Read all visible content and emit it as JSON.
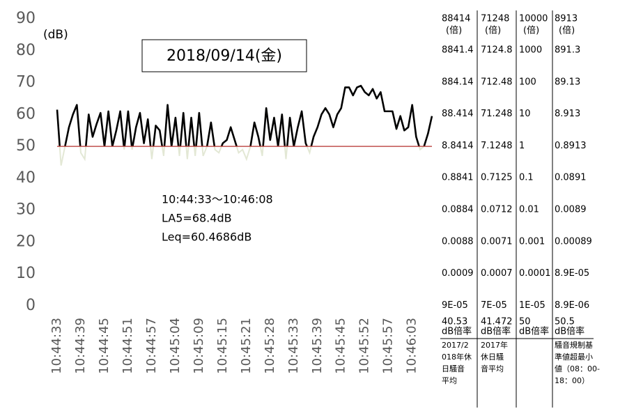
{
  "chart_data": {
    "type": "line",
    "y_unit_label": "(dB)",
    "date_label": "2018/09/14(金)",
    "annotations": [
      "10:44:33～10:46:08",
      "LA5=68.4dB",
      "Leq=60.4686dB"
    ],
    "categories": [
      "10:44:33",
      null,
      null,
      null,
      null,
      null,
      "10:44:39",
      null,
      null,
      null,
      null,
      null,
      "10:44:45",
      null,
      null,
      null,
      null,
      null,
      "10:44:51",
      null,
      null,
      null,
      null,
      null,
      "10:44:57",
      null,
      null,
      null,
      null,
      null,
      "10:45:04",
      null,
      null,
      null,
      null,
      null,
      "10:45:09",
      null,
      null,
      null,
      null,
      null,
      "10:45:15",
      null,
      null,
      null,
      null,
      null,
      "10:45:21",
      null,
      null,
      null,
      null,
      null,
      "10:45:28",
      null,
      null,
      null,
      null,
      null,
      "10:45:33",
      null,
      null,
      null,
      null,
      null,
      "10:45:39",
      null,
      null,
      null,
      null,
      null,
      "10:45:45",
      null,
      null,
      null,
      null,
      null,
      "10:45:52",
      null,
      null,
      null,
      null,
      null,
      "10:45:57",
      null,
      null,
      null,
      null,
      null,
      "10:46:03",
      null,
      null,
      null,
      null,
      null
    ],
    "series": [
      {
        "color": "#000000",
        "below_color": "#e3e8d5",
        "values": [
          61.5,
          44,
          50,
          56,
          60,
          63,
          48,
          46,
          60,
          53,
          57,
          60.5,
          50,
          61,
          50,
          55,
          61,
          49,
          61,
          49,
          56,
          60.5,
          51,
          58.5,
          46,
          56.5,
          55,
          47,
          63,
          50,
          59,
          47,
          60.5,
          46,
          59,
          47,
          60.5,
          47,
          50,
          57.5,
          49,
          48,
          51,
          52,
          56,
          52,
          48,
          49,
          46,
          50,
          57.5,
          53,
          47,
          62,
          52,
          59,
          50,
          60,
          46,
          59,
          50,
          56,
          61,
          51,
          48,
          53,
          56,
          60,
          62,
          60,
          56,
          60,
          62,
          68.5,
          68.5,
          66,
          68.5,
          69,
          67,
          66,
          68,
          65,
          67,
          61,
          61,
          61,
          55.5,
          59.5,
          55,
          56,
          63,
          53,
          49,
          50,
          54,
          59.5
        ]
      }
    ],
    "reference_line": {
      "value": 50,
      "color": "#c0504d"
    },
    "ylim": [
      0,
      90
    ],
    "yticks": [
      0,
      10,
      20,
      30,
      40,
      50,
      60,
      70,
      80,
      90
    ],
    "grid": false
  },
  "table": {
    "columns": [
      {
        "header": [
          "88414",
          "(倍)"
        ],
        "values": [
          "8841.4",
          "884.14",
          "88.414",
          "8.8414",
          "0.8841",
          "0.0884",
          "0.0088",
          "0.0009",
          "9E-05"
        ],
        "base": "40.53",
        "unit": "dB倍率",
        "note": [
          "2017/2",
          "018年休",
          "日騒音",
          "平均"
        ]
      },
      {
        "header": [
          "71248",
          "(倍)"
        ],
        "values": [
          "7124.8",
          "712.48",
          "71.248",
          "7.1248",
          "0.7125",
          "0.0712",
          "0.0071",
          "0.0007",
          "7E-05"
        ],
        "base": "41.472",
        "unit": "dB倍率",
        "note": [
          "2017年",
          "休日騒",
          "音平均"
        ]
      },
      {
        "header": [
          "10000",
          "(倍)"
        ],
        "values": [
          "1000",
          "100",
          "10",
          "1",
          "0.1",
          "0.01",
          "0.001",
          "0.0001",
          "1E-05"
        ],
        "base": "50",
        "unit": "dB倍率",
        "note": []
      },
      {
        "header": [
          "8913",
          "(倍)"
        ],
        "values": [
          "891.3",
          "89.13",
          "8.913",
          "0.8913",
          "0.0891",
          "0.0089",
          "0.00089",
          "8.9E-05",
          "8.9E-06"
        ],
        "base": "50.5",
        "unit": "dB倍率",
        "note": [
          "騒音規制基",
          "準値超最小",
          "値（08：00-",
          "18：00）"
        ]
      }
    ]
  }
}
